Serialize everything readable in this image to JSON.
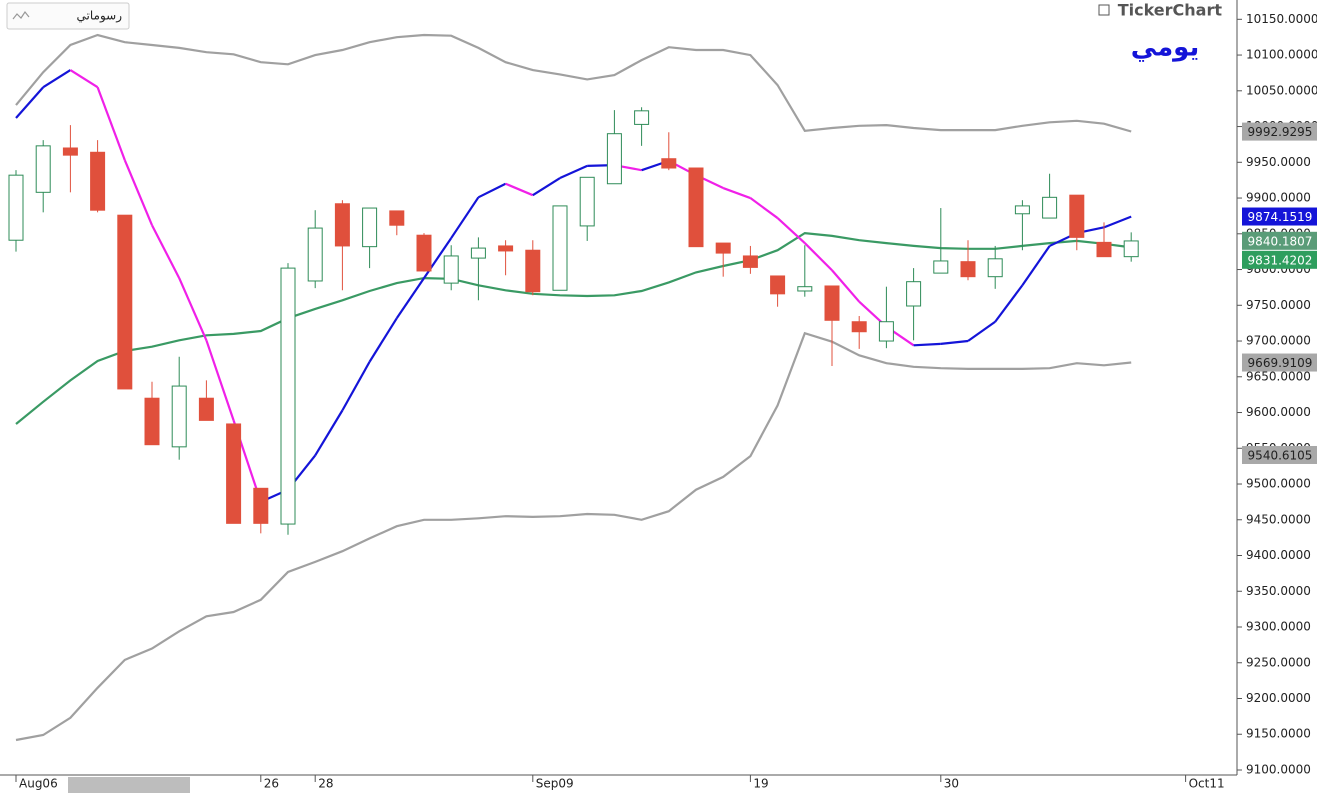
{
  "chart_data": {
    "type": "candlestick",
    "brand": "TickerChart",
    "period_label": "يومي",
    "button_label": "رسوماتي",
    "categories": [
      "Aug06",
      null,
      null,
      null,
      null,
      null,
      null,
      null,
      null,
      "26",
      null,
      "28",
      null,
      null,
      null,
      null,
      null,
      null,
      null,
      "Sep09",
      null,
      null,
      null,
      null,
      null,
      null,
      null,
      "19",
      null,
      null,
      null,
      null,
      null,
      null,
      "30",
      null,
      null,
      null,
      null,
      null,
      null,
      null,
      null,
      "Oct11"
    ],
    "open": [
      9841,
      9908,
      9970,
      9964,
      9876,
      9620,
      9552,
      9620,
      9584,
      9494,
      9444,
      9784,
      9892,
      9832,
      9882,
      9848,
      9781,
      9816,
      9833,
      9827,
      9771,
      9861,
      9920,
      10003,
      9955,
      9942,
      9837,
      9819,
      9791,
      9770,
      9777,
      9727,
      9700,
      9749,
      9795,
      9811,
      9790,
      9878,
      9872,
      9904,
      9838,
      9818,
      null,
      null
    ],
    "high": [
      9939,
      9981,
      10002,
      9981,
      9876,
      9643,
      9678,
      9645,
      9584,
      9494,
      9809,
      9883,
      9897,
      9886,
      9882,
      9851,
      9834,
      9845,
      9841,
      9841,
      9889,
      9929,
      10023,
      10027,
      9992,
      9942,
      9837,
      9833,
      9791,
      9834,
      9777,
      9735,
      9776,
      9802,
      9886,
      9841,
      9833,
      9897,
      9934,
      9904,
      9866,
      9852,
      null,
      null
    ],
    "low": [
      9825,
      9880,
      9908,
      9880,
      9633,
      9555,
      9534,
      9589,
      9445,
      9431,
      9429,
      9774,
      9771,
      9802,
      9848,
      9797,
      9771,
      9757,
      9792,
      9764,
      9771,
      9840,
      9920,
      9973,
      9939,
      9832,
      9790,
      9794,
      9748,
      9762,
      9665,
      9689,
      9690,
      9701,
      9795,
      9785,
      9773,
      9827,
      9872,
      9827,
      9818,
      9811,
      null,
      null
    ],
    "close": [
      9932,
      9973,
      9960,
      9883,
      9633,
      9555,
      9637,
      9589,
      9445,
      9445,
      9802,
      9858,
      9833,
      9886,
      9862,
      9798,
      9819,
      9830,
      9826,
      9769,
      9889,
      9929,
      9990,
      10022,
      9942,
      9832,
      9823,
      9803,
      9766,
      9776,
      9729,
      9713,
      9727,
      9783,
      9812,
      9790,
      9815,
      9889,
      9901,
      9845,
      9818,
      9840,
      null,
      null
    ],
    "up_color": "#2e8b57",
    "down_color": "#e0503c",
    "series": [
      {
        "color": "#a0a0a0",
        "values": [
          10030,
          10076,
          10114,
          10128,
          10118,
          10114,
          10110,
          10104,
          10101,
          10090,
          10087,
          10100,
          10107,
          10118,
          10125,
          10128,
          10127,
          10110,
          10090,
          10079,
          10073,
          10066,
          10072,
          10093,
          10111,
          10107,
          10107,
          10100,
          10058,
          9994,
          9998,
          10001,
          10002,
          9998,
          9995,
          9995,
          9995,
          10001,
          10006,
          10008,
          10004,
          9993,
          null,
          null
        ]
      },
      {
        "color": "#a0a0a0",
        "values": [
          9142,
          9149,
          9173,
          9215,
          9254,
          9270,
          9294,
          9315,
          9321,
          9338,
          9377,
          9391,
          9406,
          9424,
          9441,
          9450,
          9450,
          9452,
          9455,
          9454,
          9455,
          9458,
          9457,
          9450,
          9462,
          9492,
          9510,
          9539,
          9610,
          9711,
          9699,
          9680,
          9669,
          9664,
          9662,
          9661,
          9661,
          9661,
          9662,
          9669,
          9666,
          9670,
          null,
          null
        ]
      },
      {
        "color": "#3a9a64",
        "values": [
          9584,
          9615,
          9645,
          9672,
          9686,
          9692,
          9701,
          9708,
          9710,
          9714,
          9732,
          9745,
          9757,
          9770,
          9781,
          9788,
          9787,
          9778,
          9771,
          9766,
          9764,
          9763,
          9764,
          9770,
          9782,
          9796,
          9805,
          9813,
          9827,
          9851,
          9847,
          9841,
          9837,
          9833,
          9830,
          9829,
          9829,
          9833,
          9837,
          9840,
          9836,
          9831,
          null,
          null
        ]
      },
      {
        "color": "#1414d8",
        "color_down": "#f020e8",
        "values": [
          10012,
          10055,
          10079,
          10055,
          9953,
          9862,
          9788,
          9701,
          9589,
          9475,
          9492,
          9540,
          9603,
          9671,
          9732,
          9788,
          9844,
          9901,
          9920,
          9904,
          9928,
          9945,
          9946,
          9939,
          9952,
          9932,
          9914,
          9900,
          9872,
          9837,
          9799,
          9755,
          9720,
          9694,
          9696,
          9700,
          9727,
          9778,
          9833,
          9851,
          9859,
          9874,
          null,
          null
        ]
      }
    ],
    "ylim": [
      9093,
      10177
    ],
    "yticks": [
      {
        "value": 9100,
        "label": "9100.0000"
      },
      {
        "value": 9150,
        "label": "9150.0000"
      },
      {
        "value": 9200,
        "label": "9200.0000"
      },
      {
        "value": 9250,
        "label": "9250.0000"
      },
      {
        "value": 9300,
        "label": "9300.0000"
      },
      {
        "value": 9350,
        "label": "9350.0000"
      },
      {
        "value": 9400,
        "label": "9400.0000"
      },
      {
        "value": 9450,
        "label": "9450.0000"
      },
      {
        "value": 9500,
        "label": "9500.0000"
      },
      {
        "value": 9550,
        "label": "9550.0000"
      },
      {
        "value": 9600,
        "label": "9600.0000"
      },
      {
        "value": 9650,
        "label": "9650.0000"
      },
      {
        "value": 9700,
        "label": "9700.0000"
      },
      {
        "value": 9750,
        "label": "9750.0000"
      },
      {
        "value": 9800,
        "label": "9800.0000"
      },
      {
        "value": 9850,
        "label": "9850.0000"
      },
      {
        "value": 9900,
        "label": "9900.0000"
      },
      {
        "value": 9950,
        "label": "9950.0000"
      },
      {
        "value": 10000,
        "label": "10000.0000"
      },
      {
        "value": 10050,
        "label": "10050.0000"
      },
      {
        "value": 10100,
        "label": "10100.0000"
      },
      {
        "value": 10150,
        "label": "10150.0000"
      }
    ],
    "price_tags": [
      {
        "value": 9992.9295,
        "color": "#a8a8a8",
        "text_color": "#222222"
      },
      {
        "value": 9874.1519,
        "color": "#1414d8",
        "text_color": "#ffffff"
      },
      {
        "value": 9840.1807,
        "color": "#5a9c78",
        "text_color": "#ffffff"
      },
      {
        "value": 9831.4202,
        "color": "#2e9e5e",
        "text_color": "#ffffff"
      },
      {
        "value": 9669.9109,
        "color": "#a8a8a8",
        "text_color": "#222222"
      },
      {
        "value": 9540.6105,
        "color": "#a8a8a8",
        "text_color": "#222222"
      }
    ]
  }
}
